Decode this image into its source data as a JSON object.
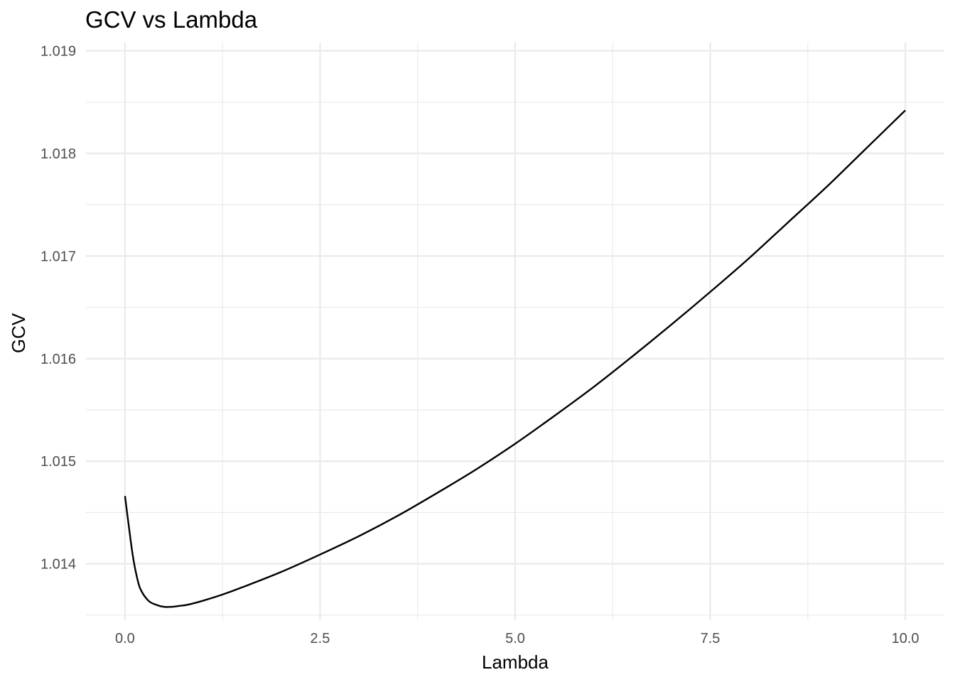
{
  "chart_data": {
    "type": "line",
    "title": "GCV vs Lambda",
    "xlabel": "Lambda",
    "ylabel": "GCV",
    "xlim": [
      -0.5,
      10.5
    ],
    "ylim": [
      1.01345,
      1.01908
    ],
    "x_ticks": [
      0.0,
      2.5,
      5.0,
      7.5,
      10.0
    ],
    "x_tick_labels": [
      "0.0",
      "2.5",
      "5.0",
      "7.5",
      "10.0"
    ],
    "y_ticks": [
      1.014,
      1.015,
      1.016,
      1.017,
      1.018,
      1.019
    ],
    "y_tick_labels": [
      "1.014",
      "1.015",
      "1.016",
      "1.017",
      "1.018",
      "1.019"
    ],
    "grid": true,
    "legend": "none",
    "line_color": "#000000",
    "series": [
      {
        "x": [
          0.0,
          0.05,
          0.1,
          0.15,
          0.2,
          0.3,
          0.4,
          0.5,
          0.6,
          0.7,
          0.8,
          1.0,
          1.25,
          1.5,
          2.0,
          2.5,
          3.0,
          3.5,
          4.0,
          4.5,
          5.0,
          5.5,
          6.0,
          6.5,
          7.0,
          7.5,
          8.0,
          8.5,
          9.0,
          9.5,
          10.0
        ],
        "y": [
          1.01466,
          1.01436,
          1.01408,
          1.01388,
          1.01375,
          1.01364,
          1.0136,
          1.01358,
          1.01358,
          1.01359,
          1.0136,
          1.01364,
          1.0137,
          1.01377,
          1.01392,
          1.01409,
          1.01427,
          1.01447,
          1.01469,
          1.01492,
          1.01517,
          1.01544,
          1.01572,
          1.01602,
          1.01633,
          1.01665,
          1.01698,
          1.01733,
          1.01768,
          1.01805,
          1.01842
        ]
      }
    ]
  }
}
